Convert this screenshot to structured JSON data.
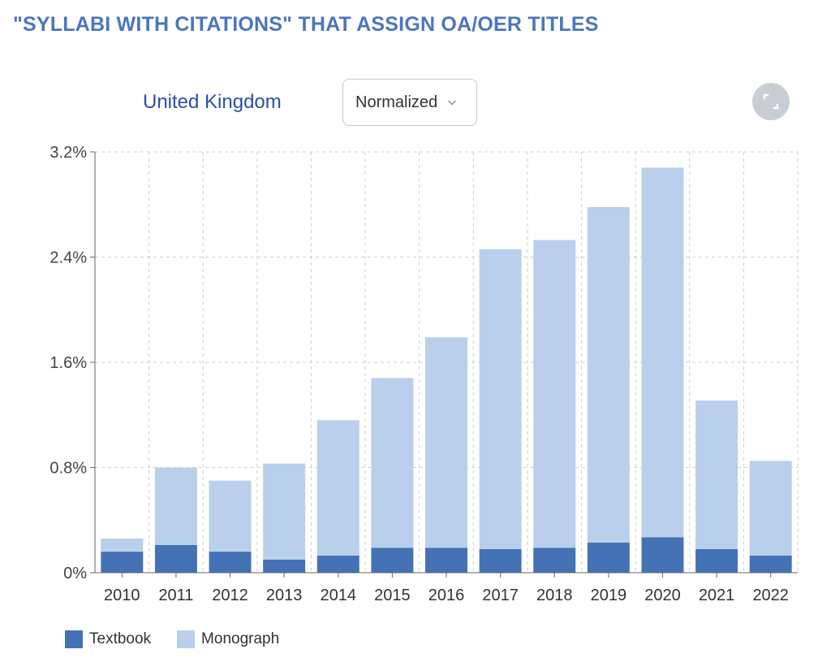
{
  "header": {
    "title": "\"SYLLABI WITH CITATIONS\" THAT ASSIGN OA/OER TITLES"
  },
  "controls": {
    "region": "United Kingdom",
    "mode_select": {
      "selected": "Normalized"
    },
    "expand_icon": "expand-icon"
  },
  "colors": {
    "title": "#4a76be",
    "textbook": "#4472b5",
    "monograph": "#b9cfeb"
  },
  "legend": [
    {
      "label": "Textbook",
      "color": "#4472b5"
    },
    {
      "label": "Monograph",
      "color": "#b9cfeb"
    }
  ],
  "chart_data": {
    "type": "bar",
    "stacked": true,
    "categories": [
      "2010",
      "2011",
      "2012",
      "2013",
      "2014",
      "2015",
      "2016",
      "2017",
      "2018",
      "2019",
      "2020",
      "2021",
      "2022"
    ],
    "series": [
      {
        "name": "Textbook",
        "values": [
          0.16,
          0.21,
          0.16,
          0.1,
          0.13,
          0.19,
          0.19,
          0.18,
          0.19,
          0.23,
          0.27,
          0.18,
          0.13
        ]
      },
      {
        "name": "Monograph",
        "values": [
          0.1,
          0.59,
          0.54,
          0.73,
          1.03,
          1.29,
          1.6,
          2.28,
          2.34,
          2.55,
          2.81,
          1.13,
          0.72
        ]
      }
    ],
    "ylim": [
      0,
      3.2
    ],
    "yticks": [
      "0%",
      "0.8%",
      "1.6%",
      "2.4%",
      "3.2%"
    ],
    "ytick_values": [
      0,
      0.8,
      1.6,
      2.4,
      3.2
    ],
    "grid": true,
    "legend_position": "bottom-left"
  }
}
